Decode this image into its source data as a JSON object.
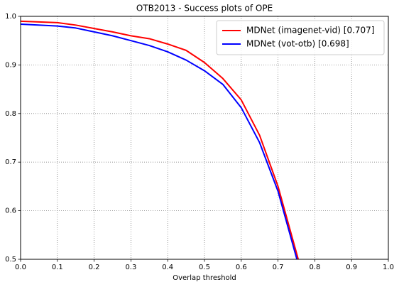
{
  "chart_data": {
    "type": "line",
    "title": "OTB2013 - Success plots of OPE",
    "x_label": "Overlap threshold",
    "x": [
      0,
      0.1,
      0.15,
      0.2,
      0.25,
      0.3,
      0.35,
      0.4,
      0.45,
      0.5,
      0.55,
      0.6,
      0.65,
      0.7,
      0.755
    ],
    "series": [
      {
        "name": "MDNet (imagenet-vid) [0.707]",
        "color": "#ff0000",
        "values": [
          0.99,
          0.987,
          0.982,
          0.975,
          0.968,
          0.96,
          0.954,
          0.943,
          0.93,
          0.905,
          0.872,
          0.828,
          0.755,
          0.65,
          0.5
        ]
      },
      {
        "name": "MDNet (vot-otb) [0.698]",
        "color": "#0000ff",
        "values": [
          0.984,
          0.98,
          0.976,
          0.968,
          0.96,
          0.95,
          0.94,
          0.927,
          0.91,
          0.888,
          0.86,
          0.812,
          0.74,
          0.64,
          0.49
        ]
      }
    ],
    "xlim": [
      0,
      1
    ],
    "ylim": [
      0.5,
      1
    ],
    "xticks": [
      {
        "value": 0,
        "label": "0.0"
      },
      0.1,
      0.2,
      0.3,
      0.4,
      0.5,
      0.6,
      0.7,
      0.8,
      0.9,
      {
        "value": 1,
        "label": "1.0"
      }
    ],
    "yticks": [
      0.5,
      0.6,
      0.7,
      0.8,
      0.9,
      {
        "value": 1,
        "label": "1.0"
      }
    ],
    "grid": true,
    "legend": "upper right"
  }
}
